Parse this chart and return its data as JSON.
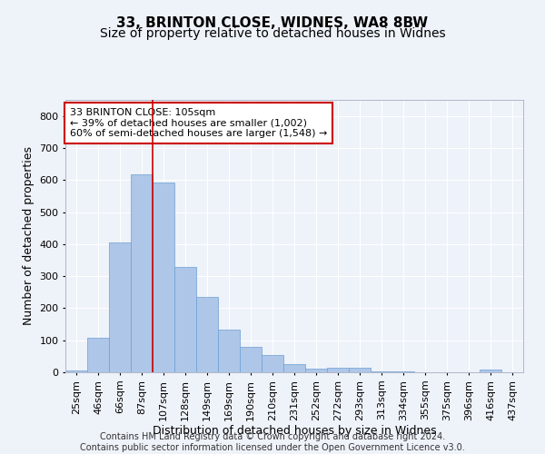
{
  "title1": "33, BRINTON CLOSE, WIDNES, WA8 8BW",
  "title2": "Size of property relative to detached houses in Widnes",
  "xlabel": "Distribution of detached houses by size in Widnes",
  "ylabel": "Number of detached properties",
  "footer": "Contains HM Land Registry data © Crown copyright and database right 2024.\nContains public sector information licensed under the Open Government Licence v3.0.",
  "categories": [
    "25sqm",
    "46sqm",
    "66sqm",
    "87sqm",
    "107sqm",
    "128sqm",
    "149sqm",
    "169sqm",
    "190sqm",
    "210sqm",
    "231sqm",
    "252sqm",
    "272sqm",
    "293sqm",
    "313sqm",
    "334sqm",
    "355sqm",
    "375sqm",
    "396sqm",
    "416sqm",
    "437sqm"
  ],
  "values": [
    7,
    107,
    405,
    617,
    592,
    328,
    236,
    132,
    78,
    55,
    25,
    12,
    15,
    15,
    4,
    3,
    0,
    0,
    0,
    8,
    0
  ],
  "bar_color": "#aec6e8",
  "bar_edge_color": "#6b9fd4",
  "property_line_x": 3.5,
  "annotation_text": "33 BRINTON CLOSE: 105sqm\n← 39% of detached houses are smaller (1,002)\n60% of semi-detached houses are larger (1,548) →",
  "annotation_box_color": "#ffffff",
  "annotation_box_edge_color": "#cc0000",
  "vline_color": "#cc0000",
  "ylim": [
    0,
    850
  ],
  "yticks": [
    0,
    100,
    200,
    300,
    400,
    500,
    600,
    700,
    800
  ],
  "background_color": "#eef2f9",
  "grid_color": "#ffffff",
  "title1_fontsize": 11,
  "title2_fontsize": 10,
  "xlabel_fontsize": 9,
  "ylabel_fontsize": 9,
  "tick_fontsize": 8,
  "annotation_fontsize": 8,
  "footer_fontsize": 7
}
